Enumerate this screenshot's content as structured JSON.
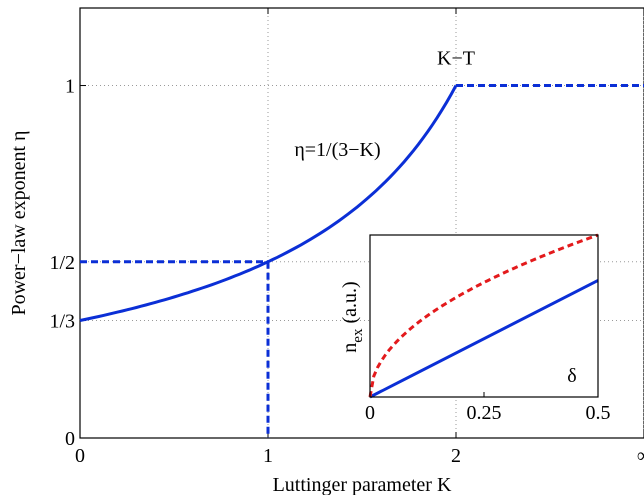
{
  "colors": {
    "main": "#0b2fd6",
    "inset_dashed": "#e31a1c",
    "grid": "#9a9a9a"
  },
  "chart_data": [
    {
      "type": "line",
      "xlabel": "Luttinger parameter K",
      "ylabel": "Power−law exponent η",
      "xlim": [
        0,
        3
      ],
      "ylim": [
        0,
        1.22
      ],
      "x_ticks": [
        {
          "value": 0,
          "label": "0"
        },
        {
          "value": 1,
          "label": "1"
        },
        {
          "value": 2,
          "label": "2"
        },
        {
          "value": 3,
          "label": "∞"
        }
      ],
      "y_ticks": [
        {
          "value": 0,
          "label": "0"
        },
        {
          "value": 0.3333,
          "label": "1/3"
        },
        {
          "value": 0.5,
          "label": "1/2"
        },
        {
          "value": 1,
          "label": "1"
        }
      ],
      "grid": true,
      "annotations": [
        {
          "text": "η=1/(3−K)",
          "x": 1.14,
          "y": 0.8
        },
        {
          "text": "K−T",
          "x": 2.0,
          "y": 1.06
        }
      ],
      "series": [
        {
          "style": "solid",
          "formula": "1/(3-K)",
          "x": [
            0,
            0.25,
            0.5,
            0.75,
            1.0,
            1.25,
            1.5,
            1.75,
            2.0
          ],
          "y": [
            0.3333,
            0.3636,
            0.4,
            0.4444,
            0.5,
            0.5714,
            0.6667,
            0.8,
            1.0
          ]
        },
        {
          "style": "dashed",
          "x": [
            2.0,
            3.0
          ],
          "y": [
            1.0,
            1.0
          ]
        },
        {
          "style": "dashed",
          "x": [
            0,
            1.0
          ],
          "y": [
            0.5,
            0.5
          ]
        },
        {
          "style": "dashed",
          "x": [
            1.0,
            1.0
          ],
          "y": [
            0.5,
            0
          ]
        }
      ]
    },
    {
      "type": "line",
      "inset": true,
      "xlabel": "δ",
      "ylabel": "n_ex (a.u.)",
      "xlim": [
        0,
        0.5
      ],
      "ylim": [
        0,
        1
      ],
      "x_ticks": [
        {
          "value": 0,
          "label": "0"
        },
        {
          "value": 0.25,
          "label": "0.25"
        },
        {
          "value": 0.5,
          "label": "0.5"
        }
      ],
      "series": [
        {
          "style": "solid",
          "x": [
            0,
            0.5
          ],
          "y": [
            0,
            0.72
          ]
        },
        {
          "style": "dashed",
          "x": [
            0,
            0.02,
            0.05,
            0.1,
            0.15,
            0.2,
            0.25,
            0.3,
            0.35,
            0.4,
            0.45,
            0.5
          ],
          "y": [
            0,
            0.2,
            0.316,
            0.447,
            0.548,
            0.632,
            0.707,
            0.775,
            0.837,
            0.894,
            0.949,
            1.0
          ]
        }
      ]
    }
  ]
}
